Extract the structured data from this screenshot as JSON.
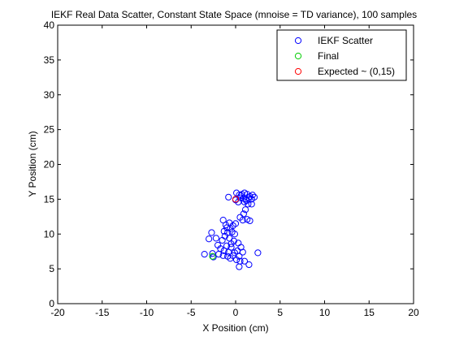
{
  "chart_data": {
    "type": "scatter",
    "title": "IEKF Real Data Scatter, Constant State Space (mnoise = TD variance), 100 samples",
    "xlabel": "X Position (cm)",
    "ylabel": "Y Position (cm)",
    "xlim": [
      -20,
      20
    ],
    "ylim": [
      0,
      40
    ],
    "xticks": [
      -20,
      -15,
      -10,
      -5,
      0,
      5,
      10,
      15,
      20
    ],
    "yticks": [
      0,
      5,
      10,
      15,
      20,
      25,
      30,
      35,
      40
    ],
    "grid": false,
    "legend_position": "top-right",
    "series": [
      {
        "name": "IEKF Scatter",
        "color": "#0000ff",
        "marker": "circle-open",
        "points": [
          [
            -0.8,
            15.3
          ],
          [
            0.1,
            15.9
          ],
          [
            0.4,
            15.6
          ],
          [
            0.7,
            15.7
          ],
          [
            1.0,
            15.9
          ],
          [
            1.3,
            15.7
          ],
          [
            1.6,
            15.4
          ],
          [
            1.9,
            15.6
          ],
          [
            2.1,
            15.3
          ],
          [
            0.5,
            15.2
          ],
          [
            0.9,
            15.1
          ],
          [
            1.2,
            15.0
          ],
          [
            1.5,
            15.2
          ],
          [
            1.8,
            15.0
          ],
          [
            0.0,
            14.9
          ],
          [
            0.3,
            14.6
          ],
          [
            1.0,
            14.6
          ],
          [
            1.4,
            14.3
          ],
          [
            1.8,
            14.3
          ],
          [
            1.1,
            13.5
          ],
          [
            0.9,
            12.9
          ],
          [
            0.5,
            12.4
          ],
          [
            1.3,
            12.1
          ],
          [
            0.8,
            12.0
          ],
          [
            1.6,
            11.9
          ],
          [
            -1.4,
            12.0
          ],
          [
            -0.7,
            11.6
          ],
          [
            -0.3,
            11.2
          ],
          [
            -1.1,
            11.3
          ],
          [
            -0.6,
            10.8
          ],
          [
            -1.3,
            10.4
          ],
          [
            -0.9,
            10.2
          ],
          [
            -0.4,
            10.3
          ],
          [
            -0.1,
            10.0
          ],
          [
            -2.7,
            10.2
          ],
          [
            -1.2,
            9.7
          ],
          [
            -0.7,
            9.4
          ],
          [
            -3.0,
            9.3
          ],
          [
            -2.2,
            9.4
          ],
          [
            -1.5,
            9.1
          ],
          [
            -0.2,
            9.0
          ],
          [
            0.3,
            8.7
          ],
          [
            -2.0,
            8.4
          ],
          [
            -1.0,
            8.3
          ],
          [
            -0.5,
            8.1
          ],
          [
            0.6,
            8.1
          ],
          [
            -1.7,
            7.9
          ],
          [
            -1.3,
            7.6
          ],
          [
            -0.8,
            7.4
          ],
          [
            0.2,
            7.6
          ],
          [
            0.8,
            7.4
          ],
          [
            -3.5,
            7.1
          ],
          [
            -2.6,
            7.2
          ],
          [
            -1.9,
            7.1
          ],
          [
            -1.4,
            6.9
          ],
          [
            -0.9,
            6.8
          ],
          [
            -0.3,
            6.9
          ],
          [
            0.4,
            6.8
          ],
          [
            2.5,
            7.3
          ],
          [
            -0.6,
            6.5
          ],
          [
            0.1,
            6.3
          ],
          [
            0.5,
            6.1
          ],
          [
            1.0,
            6.1
          ],
          [
            0.4,
            5.3
          ],
          [
            1.5,
            5.6
          ],
          [
            -2.5,
            6.7
          ],
          [
            -0.1,
            7.3
          ],
          [
            -1.0,
            10.9
          ],
          [
            0.0,
            11.5
          ],
          [
            1.2,
            14.8
          ],
          [
            0.6,
            15.5
          ],
          [
            -0.5,
            8.6
          ]
        ]
      },
      {
        "name": "Final",
        "color": "#00cc00",
        "marker": "circle-open",
        "points": [
          [
            -2.6,
            6.8
          ]
        ]
      },
      {
        "name": "Expected ~ (0,15)",
        "color": "#ff0000",
        "marker": "circle-open",
        "points": [
          [
            0,
            15
          ]
        ]
      }
    ]
  }
}
